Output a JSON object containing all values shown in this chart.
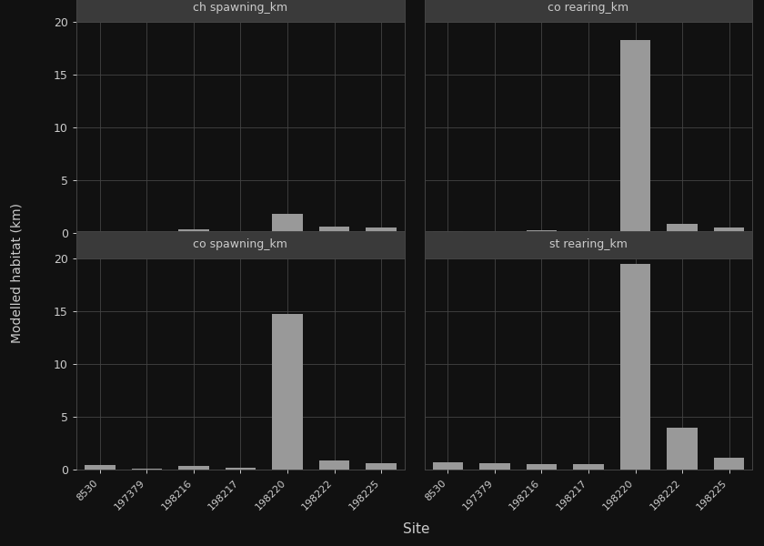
{
  "sites": [
    "8530",
    "197379",
    "198216",
    "198217",
    "198220",
    "198222",
    "198225"
  ],
  "panels": [
    {
      "title": "ch spawning_km",
      "values": [
        0.05,
        0.05,
        0.35,
        0.1,
        1.8,
        0.6,
        0.5
      ]
    },
    {
      "title": "co rearing_km",
      "values": [
        0.2,
        0.05,
        0.3,
        0.1,
        18.3,
        0.9,
        0.5
      ]
    },
    {
      "title": "co spawning_km",
      "values": [
        0.4,
        0.05,
        0.35,
        0.15,
        14.7,
        0.9,
        0.6
      ]
    },
    {
      "title": "st rearing_km",
      "values": [
        0.7,
        0.6,
        0.55,
        0.55,
        19.5,
        4.0,
        1.1
      ]
    }
  ],
  "ylabel": "Modelled habitat (km)",
  "xlabel": "Site",
  "bg_color": "#111111",
  "panel_bg_color": "#111111",
  "strip_bg_color": "#3a3a3a",
  "bar_color": "#999999",
  "grid_color": "#444444",
  "text_color": "#cccccc",
  "tick_color": "#cccccc",
  "ylim": [
    0,
    20
  ],
  "yticks": [
    0,
    5,
    10,
    15,
    20
  ]
}
